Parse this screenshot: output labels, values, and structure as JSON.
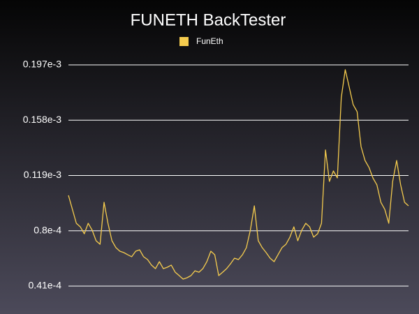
{
  "chart_data": {
    "type": "line",
    "title": "FUNETH BackTester",
    "series": [
      {
        "name": "FunEth",
        "color": "#f5cc4e",
        "values": [
          0.000105,
          9.51e-05,
          8.53e-05,
          8.28e-05,
          7.79e-05,
          8.53e-05,
          8.04e-05,
          7.3e-05,
          7.05e-05,
          0.0001001,
          8.53e-05,
          7.3e-05,
          6.81e-05,
          6.56e-05,
          6.46e-05,
          6.31e-05,
          6.17e-05,
          6.56e-05,
          6.66e-05,
          6.17e-05,
          5.97e-05,
          5.58e-05,
          5.33e-05,
          5.82e-05,
          5.33e-05,
          5.43e-05,
          5.58e-05,
          5.08e-05,
          4.84e-05,
          4.59e-05,
          4.69e-05,
          4.84e-05,
          5.18e-05,
          5.08e-05,
          5.33e-05,
          5.82e-05,
          6.56e-05,
          6.31e-05,
          4.84e-05,
          5.08e-05,
          5.33e-05,
          5.68e-05,
          6.07e-05,
          5.97e-05,
          6.31e-05,
          6.81e-05,
          8.04e-05,
          9.76e-05,
          7.3e-05,
          6.81e-05,
          6.46e-05,
          6.07e-05,
          5.82e-05,
          6.31e-05,
          6.81e-05,
          7.05e-05,
          7.55e-05,
          8.28e-05,
          7.3e-05,
          8.04e-05,
          8.53e-05,
          8.28e-05,
          7.55e-05,
          7.79e-05,
          8.53e-05,
          0.000137,
          0.0001148,
          0.0001222,
          0.0001173,
          0.0001739,
          0.0001936,
          0.0001813,
          0.000169,
          0.000164,
          0.0001394,
          0.0001296,
          0.0001247,
          0.0001173,
          0.0001124,
          0.0001001,
          9.51e-05,
          8.53e-05,
          0.0001148,
          0.0001296,
          0.0001124,
          0.0001001,
          9.76e-05
        ]
      }
    ],
    "ylim": [
      4.1e-05,
      0.000197
    ],
    "yticks": [
      {
        "value": 4.1e-05,
        "label": "0.41e-4"
      },
      {
        "value": 8e-05,
        "label": "0.8e-4"
      },
      {
        "value": 0.000119,
        "label": "0.119e-3"
      },
      {
        "value": 0.000158,
        "label": "0.158e-3"
      },
      {
        "value": 0.000197,
        "label": "0.197e-3"
      }
    ],
    "grid": true,
    "legend": "top"
  }
}
